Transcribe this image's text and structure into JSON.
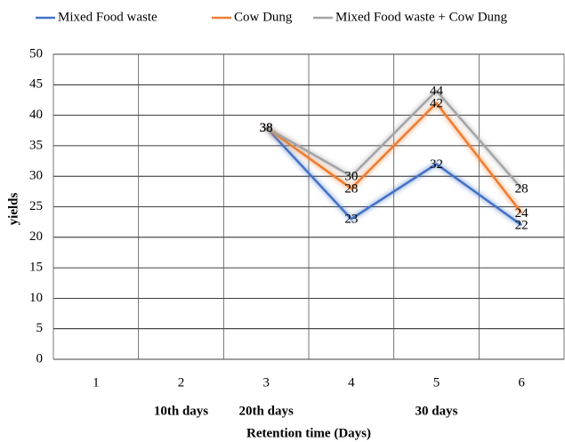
{
  "chart_data": {
    "type": "line",
    "categories": [
      "1",
      "2",
      "3",
      "4",
      "5",
      "6"
    ],
    "group_labels": [
      null,
      "10th days",
      "20th days",
      null,
      "30 days",
      null
    ],
    "x_label": "Retention time (Days)",
    "y_label": "yields",
    "ylim": [
      0,
      50
    ],
    "yticks": [
      0,
      5,
      10,
      15,
      20,
      25,
      30,
      35,
      40,
      45,
      50
    ],
    "grid": true,
    "legend": "top",
    "series": [
      {
        "name": "Mixed Food waste",
        "color": "#4472c4",
        "values": [
          null,
          null,
          38,
          23,
          32,
          22
        ]
      },
      {
        "name": "Cow Dung",
        "color": "#ed7d31",
        "values": [
          null,
          null,
          38,
          28,
          42,
          24
        ]
      },
      {
        "name": "Mixed Food waste + Cow Dung",
        "color": "#a5a5a5",
        "values": [
          null,
          null,
          38,
          30,
          44,
          28
        ]
      }
    ]
  }
}
